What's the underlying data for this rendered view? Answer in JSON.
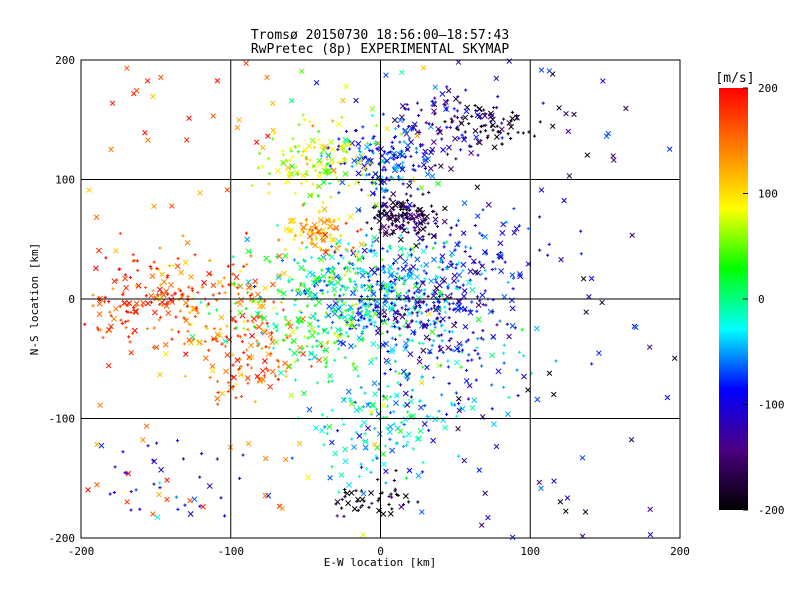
{
  "chart_data": {
    "type": "scatter",
    "title": "Tromsø 20150730 18:56:00–18:57:43",
    "subtitle": "RwPretec (8p) EXPERIMENTAL SKYMAP",
    "xlabel": "E-W location [km]",
    "ylabel": "N-S location [km]",
    "xlim": [
      -200,
      200
    ],
    "ylim": [
      -200,
      200
    ],
    "xticks": [
      "-200",
      "-100",
      "0",
      "100",
      "200"
    ],
    "yticks": [
      "-200",
      "-100",
      "0",
      "100",
      "200"
    ],
    "grid": true,
    "marker_types": [
      "cross",
      "plus"
    ],
    "colorbar": {
      "label": "[m/s]",
      "range": [
        -200,
        200
      ],
      "ticks": [
        "-200",
        "-100",
        "0",
        "100",
        "200"
      ],
      "colormap": "rainbow (black-purple-blue-cyan-green-yellow-orange-red)",
      "stops": [
        "#000000",
        "#4b0082",
        "#0000ff",
        "#00ffff",
        "#00ff00",
        "#ffff00",
        "#ff8000",
        "#ff0000"
      ]
    },
    "clusters": [
      {
        "region": "north-east dense patch",
        "x": 15,
        "y": 70,
        "velocity": -170
      },
      {
        "region": "far north-east patch",
        "x": 70,
        "y": 145,
        "velocity": -190
      },
      {
        "region": "north-east blue band",
        "x": 40,
        "y": 145,
        "velocity": -120
      },
      {
        "region": "north band",
        "x": 0,
        "y": 115,
        "velocity": -80
      },
      {
        "region": "north-west band",
        "x": -40,
        "y": 115,
        "velocity": 70
      },
      {
        "region": "north-west orange",
        "x": -40,
        "y": 55,
        "velocity": 120
      },
      {
        "region": "far west red patch",
        "x": -160,
        "y": 0,
        "velocity": 180
      },
      {
        "region": "west red patch",
        "x": -110,
        "y": 5,
        "velocity": 150
      },
      {
        "region": "west-south red",
        "x": -90,
        "y": -50,
        "velocity": 160
      },
      {
        "region": "centre cyan",
        "x": 0,
        "y": 5,
        "velocity": -50
      },
      {
        "region": "centre-west green",
        "x": -30,
        "y": -10,
        "velocity": 20
      },
      {
        "region": "east blue",
        "x": 35,
        "y": -15,
        "velocity": -120
      },
      {
        "region": "east mixed",
        "x": 60,
        "y": 35,
        "velocity": -90
      },
      {
        "region": "south-east mixed",
        "x": 50,
        "y": -60,
        "velocity": -60
      },
      {
        "region": "south band",
        "x": 0,
        "y": -110,
        "velocity": -30
      },
      {
        "region": "south black patch",
        "x": -5,
        "y": -170,
        "velocity": -200
      },
      {
        "region": "south-west",
        "x": -140,
        "y": -150,
        "velocity": -100
      }
    ]
  }
}
